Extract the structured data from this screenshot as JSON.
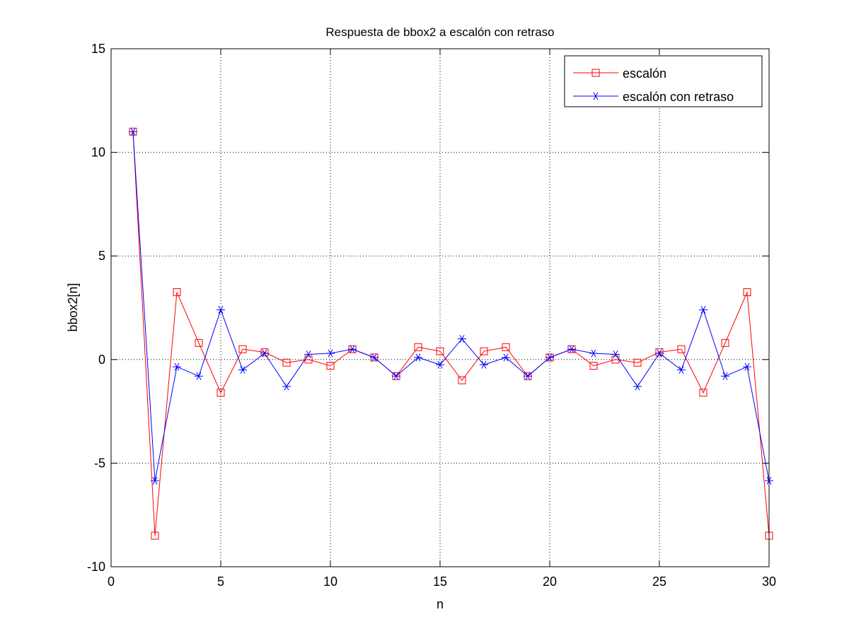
{
  "chart_data": {
    "type": "line",
    "title": "Respuesta de bbox2 a escalón con retraso",
    "xlabel": "n",
    "ylabel": "bbox2[n]",
    "xlim": [
      0,
      30
    ],
    "ylim": [
      -10,
      15
    ],
    "xticks": [
      0,
      5,
      10,
      15,
      20,
      25,
      30
    ],
    "yticks": [
      -10,
      -5,
      0,
      5,
      10,
      15
    ],
    "xtick_labels": [
      "0",
      "5",
      "10",
      "15",
      "20",
      "25",
      "30"
    ],
    "ytick_labels": [
      "-10",
      "-5",
      "0",
      "5",
      "10",
      "15"
    ],
    "grid": true,
    "legend_position": "top-right",
    "x": [
      1,
      2,
      3,
      4,
      5,
      6,
      7,
      8,
      9,
      10,
      11,
      12,
      13,
      14,
      15,
      16,
      17,
      18,
      19,
      20,
      21,
      22,
      23,
      24,
      25,
      26,
      27,
      28,
      29,
      30
    ],
    "series": [
      {
        "name": "escalón",
        "color": "#ff0000",
        "marker": "square",
        "values": [
          11.0,
          -8.5,
          3.25,
          0.8,
          -1.6,
          0.5,
          0.35,
          -0.15,
          0.0,
          -0.3,
          0.5,
          0.1,
          -0.8,
          0.6,
          0.4,
          -1.0,
          0.4,
          0.6,
          -0.8,
          0.1,
          0.5,
          -0.3,
          0.0,
          -0.15,
          0.35,
          0.5,
          -1.6,
          0.8,
          3.25,
          -8.5
        ]
      },
      {
        "name": "escalón con retraso",
        "color": "#0000ff",
        "marker": "asterisk",
        "values": [
          11.0,
          -5.85,
          -0.35,
          -0.8,
          2.4,
          -0.5,
          0.3,
          -1.3,
          0.25,
          0.3,
          0.5,
          0.1,
          -0.8,
          0.1,
          -0.25,
          1.0,
          -0.25,
          0.1,
          -0.8,
          0.1,
          0.5,
          0.3,
          0.25,
          -1.3,
          0.3,
          -0.5,
          2.4,
          -0.8,
          -0.35,
          -5.85
        ]
      }
    ]
  }
}
